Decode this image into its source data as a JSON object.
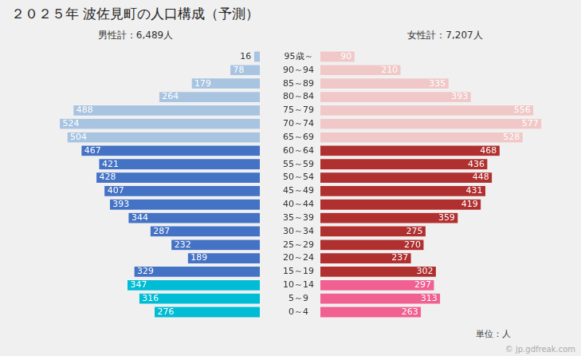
{
  "chart_data": {
    "type": "bar",
    "orientation": "horizontal",
    "title": "２０２５年 波佐見町の人口構成（予測）",
    "categories": [
      "0～4",
      "5～9",
      "10～14",
      "15～19",
      "20～24",
      "25～29",
      "30～34",
      "35～39",
      "40～44",
      "45～49",
      "50～54",
      "55～59",
      "60～64",
      "65～69",
      "70～74",
      "75～79",
      "80～84",
      "85～89",
      "90～94",
      "95歳～"
    ],
    "series": [
      {
        "name": "男性計：6,489人",
        "values": [
          276,
          316,
          347,
          329,
          189,
          232,
          287,
          344,
          393,
          407,
          428,
          421,
          467,
          504,
          524,
          488,
          264,
          179,
          78,
          16
        ],
        "colors": [
          "#00bcd4",
          "#00bcd4",
          "#00bcd4",
          "#4472c4",
          "#4472c4",
          "#4472c4",
          "#4472c4",
          "#4472c4",
          "#4472c4",
          "#4472c4",
          "#4472c4",
          "#4472c4",
          "#4472c4",
          "#a8c4e0",
          "#a8c4e0",
          "#a8c4e0",
          "#a8c4e0",
          "#a8c4e0",
          "#a8c4e0",
          "#a8c4e0"
        ]
      },
      {
        "name": "女性計：7,207人",
        "values": [
          263,
          313,
          297,
          302,
          237,
          270,
          275,
          359,
          419,
          431,
          448,
          436,
          468,
          528,
          577,
          556,
          393,
          335,
          210,
          90
        ],
        "colors": [
          "#f06090",
          "#f06090",
          "#f06090",
          "#b03030",
          "#b03030",
          "#b03030",
          "#b03030",
          "#b03030",
          "#b03030",
          "#b03030",
          "#b03030",
          "#b03030",
          "#b03030",
          "#f0c8c8",
          "#f0c8c8",
          "#f0c8c8",
          "#f0c8c8",
          "#f0c8c8",
          "#f0c8c8",
          "#f0c8c8"
        ]
      }
    ],
    "xlim": [
      0,
      650
    ],
    "annotations": [
      "単位：人",
      "© jp.gdfreak.com"
    ],
    "data_labels": true,
    "tick_labels": "y",
    "grid": false
  }
}
